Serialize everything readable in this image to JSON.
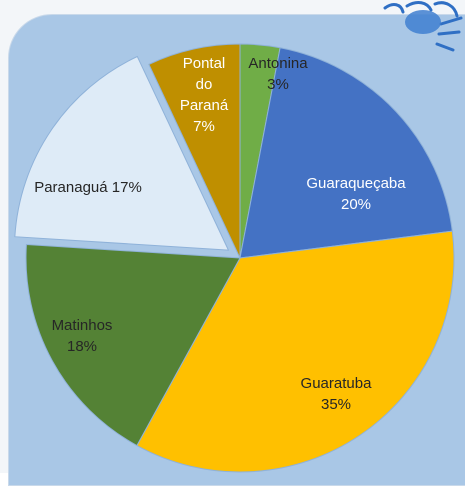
{
  "chart_data": {
    "type": "pie",
    "title": "",
    "legend": "none",
    "slices": [
      {
        "label": "Antonina",
        "value": 3,
        "value_label": "3%",
        "color": "#70ad47",
        "text_color": "#262626",
        "text_lines": [
          "Antonina",
          "3%"
        ]
      },
      {
        "label": "Guaraqueçaba",
        "value": 20,
        "value_label": "20%",
        "color": "#4472c4",
        "text_color": "#ffffff",
        "text_lines": [
          "Guaraqueçaba",
          "20%"
        ]
      },
      {
        "label": "Guaratuba",
        "value": 35,
        "value_label": "35%",
        "color": "#ffc000",
        "text_color": "#262626",
        "text_lines": [
          "Guaratuba",
          "35%"
        ]
      },
      {
        "label": "Matinhos",
        "value": 18,
        "value_label": "18%",
        "color": "#548235",
        "text_color": "#262626",
        "text_lines": [
          "Matinhos",
          "18%"
        ]
      },
      {
        "label": "Paranaguá",
        "value": 17,
        "value_label": "17%",
        "color": "#deebf7",
        "text_color": "#262626",
        "text_lines": [
          "Paranaguá 17%"
        ],
        "exploded": true
      },
      {
        "label": "Pontal do Paraná",
        "value": 7,
        "value_label": "7%",
        "color": "#bf8f00",
        "text_color": "#ffffff",
        "text_lines": [
          "Pontal",
          "do",
          "Paraná",
          "7%"
        ]
      }
    ]
  }
}
